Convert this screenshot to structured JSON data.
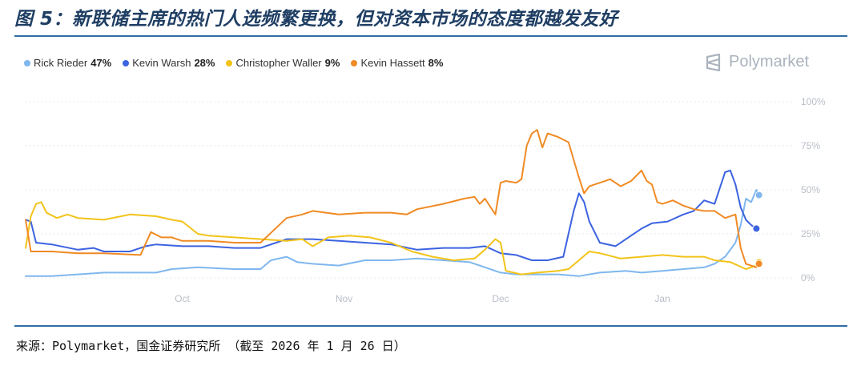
{
  "figure": {
    "title": "图 5：新联储主席的热门人选频繁更换，但对资本市场的态度都越发友好",
    "source": "来源：Polymarket，国金证券研究所 （截至 2026 年 1 月 26 日）",
    "brand": "Polymarket",
    "brand_icon": "polymarket-logo-icon"
  },
  "colors": {
    "rick_rieder": "#7fb7ee",
    "kevin_warsh": "#3c63e0",
    "christopher_waller": "#f2c318",
    "kevin_hassett": "#f08a24",
    "rule": "#2e6da4",
    "title": "#1f3e63"
  },
  "chart_data": {
    "type": "line",
    "x_unit": "day index starting Sep 1 (2025)",
    "xlim": [
      0,
      147
    ],
    "x_ticks": [
      {
        "label": "Oct",
        "x": 30
      },
      {
        "label": "Nov",
        "x": 61
      },
      {
        "label": "Dec",
        "x": 91
      },
      {
        "label": "Jan",
        "x": 122
      }
    ],
    "ylim": [
      0,
      100
    ],
    "y_ticks": [
      "0%",
      "25%",
      "50%",
      "75%",
      "100%"
    ],
    "y_tick_values": [
      0,
      25,
      50,
      75,
      100
    ],
    "grid": true,
    "legend_position": "top-left",
    "series": [
      {
        "name": "Rick Rieder",
        "pct_label": "47%",
        "color": "#7fb7ee",
        "points": [
          [
            0,
            1
          ],
          [
            5,
            1
          ],
          [
            10,
            2
          ],
          [
            15,
            3
          ],
          [
            25,
            3
          ],
          [
            28,
            5
          ],
          [
            33,
            6
          ],
          [
            40,
            5
          ],
          [
            45,
            5
          ],
          [
            47,
            10
          ],
          [
            50,
            12
          ],
          [
            52,
            9
          ],
          [
            55,
            8
          ],
          [
            60,
            7
          ],
          [
            65,
            10
          ],
          [
            70,
            10
          ],
          [
            75,
            11
          ],
          [
            80,
            10
          ],
          [
            85,
            9
          ],
          [
            88,
            6
          ],
          [
            91,
            3
          ],
          [
            94,
            2
          ],
          [
            98,
            2
          ],
          [
            102,
            2
          ],
          [
            106,
            1
          ],
          [
            110,
            3
          ],
          [
            115,
            4
          ],
          [
            118,
            3
          ],
          [
            122,
            4
          ],
          [
            126,
            5
          ],
          [
            130,
            6
          ],
          [
            132,
            8
          ],
          [
            134,
            12
          ],
          [
            136,
            20
          ],
          [
            137,
            30
          ],
          [
            138,
            45
          ],
          [
            139,
            43
          ],
          [
            140,
            50
          ],
          [
            140.5,
            47
          ]
        ]
      },
      {
        "name": "Kevin Warsh",
        "pct_label": "28%",
        "color": "#3c63e0",
        "points": [
          [
            0,
            33
          ],
          [
            1,
            32
          ],
          [
            2,
            20
          ],
          [
            5,
            19
          ],
          [
            10,
            16
          ],
          [
            13,
            17
          ],
          [
            15,
            15
          ],
          [
            20,
            15
          ],
          [
            23,
            18
          ],
          [
            25,
            19
          ],
          [
            30,
            18
          ],
          [
            35,
            18
          ],
          [
            40,
            17
          ],
          [
            45,
            17
          ],
          [
            48,
            20
          ],
          [
            50,
            22
          ],
          [
            55,
            22
          ],
          [
            60,
            21
          ],
          [
            65,
            20
          ],
          [
            70,
            19
          ],
          [
            75,
            16
          ],
          [
            80,
            17
          ],
          [
            85,
            17
          ],
          [
            88,
            18
          ],
          [
            91,
            14
          ],
          [
            94,
            13
          ],
          [
            97,
            10
          ],
          [
            100,
            10
          ],
          [
            103,
            12
          ],
          [
            105,
            38
          ],
          [
            106,
            48
          ],
          [
            107,
            43
          ],
          [
            108,
            32
          ],
          [
            110,
            20
          ],
          [
            113,
            18
          ],
          [
            116,
            24
          ],
          [
            118,
            28
          ],
          [
            120,
            31
          ],
          [
            123,
            32
          ],
          [
            126,
            36
          ],
          [
            128,
            38
          ],
          [
            130,
            44
          ],
          [
            132,
            42
          ],
          [
            134,
            60
          ],
          [
            135,
            61
          ],
          [
            136,
            53
          ],
          [
            137,
            40
          ],
          [
            138,
            33
          ],
          [
            139,
            30
          ],
          [
            140,
            28
          ]
        ]
      },
      {
        "name": "Christopher Waller",
        "pct_label": "9%",
        "color": "#f2c318",
        "points": [
          [
            0,
            17
          ],
          [
            1,
            35
          ],
          [
            2,
            42
          ],
          [
            3,
            43
          ],
          [
            4,
            37
          ],
          [
            6,
            34
          ],
          [
            8,
            36
          ],
          [
            10,
            34
          ],
          [
            15,
            33
          ],
          [
            20,
            36
          ],
          [
            25,
            35
          ],
          [
            28,
            33
          ],
          [
            30,
            32
          ],
          [
            33,
            25
          ],
          [
            35,
            24
          ],
          [
            40,
            23
          ],
          [
            45,
            22
          ],
          [
            50,
            21
          ],
          [
            53,
            22
          ],
          [
            55,
            18
          ],
          [
            58,
            23
          ],
          [
            62,
            24
          ],
          [
            66,
            23
          ],
          [
            70,
            20
          ],
          [
            74,
            15
          ],
          [
            78,
            12
          ],
          [
            82,
            10
          ],
          [
            86,
            11
          ],
          [
            88,
            16
          ],
          [
            90,
            22
          ],
          [
            91,
            20
          ],
          [
            92,
            4
          ],
          [
            95,
            2
          ],
          [
            98,
            3
          ],
          [
            102,
            4
          ],
          [
            104,
            5
          ],
          [
            106,
            10
          ],
          [
            108,
            15
          ],
          [
            110,
            14
          ],
          [
            114,
            11
          ],
          [
            118,
            12
          ],
          [
            122,
            13
          ],
          [
            126,
            12
          ],
          [
            130,
            12
          ],
          [
            132,
            10
          ],
          [
            135,
            9
          ],
          [
            138,
            5
          ],
          [
            140,
            7
          ],
          [
            140.5,
            9
          ]
        ]
      },
      {
        "name": "Kevin Hassett",
        "pct_label": "8%",
        "color": "#f08a24",
        "points": [
          [
            0,
            33
          ],
          [
            1,
            15
          ],
          [
            5,
            15
          ],
          [
            10,
            14
          ],
          [
            15,
            14
          ],
          [
            22,
            13
          ],
          [
            24,
            26
          ],
          [
            26,
            23
          ],
          [
            28,
            23
          ],
          [
            30,
            21
          ],
          [
            35,
            21
          ],
          [
            40,
            20
          ],
          [
            45,
            20
          ],
          [
            50,
            34
          ],
          [
            53,
            36
          ],
          [
            55,
            38
          ],
          [
            60,
            36
          ],
          [
            65,
            37
          ],
          [
            70,
            37
          ],
          [
            73,
            36
          ],
          [
            75,
            39
          ],
          [
            80,
            42
          ],
          [
            84,
            45
          ],
          [
            86,
            46
          ],
          [
            87,
            42
          ],
          [
            88,
            45
          ],
          [
            90,
            36
          ],
          [
            91,
            54
          ],
          [
            92,
            55
          ],
          [
            94,
            54
          ],
          [
            95,
            56
          ],
          [
            96,
            75
          ],
          [
            97,
            82
          ],
          [
            98,
            84
          ],
          [
            99,
            74
          ],
          [
            100,
            82
          ],
          [
            102,
            80
          ],
          [
            104,
            77
          ],
          [
            106,
            57
          ],
          [
            107,
            48
          ],
          [
            108,
            52
          ],
          [
            110,
            54
          ],
          [
            112,
            56
          ],
          [
            114,
            52
          ],
          [
            116,
            55
          ],
          [
            118,
            61
          ],
          [
            119,
            55
          ],
          [
            120,
            53
          ],
          [
            121,
            43
          ],
          [
            122,
            42
          ],
          [
            124,
            44
          ],
          [
            126,
            41
          ],
          [
            128,
            39
          ],
          [
            130,
            38
          ],
          [
            132,
            38
          ],
          [
            134,
            34
          ],
          [
            136,
            36
          ],
          [
            137,
            17
          ],
          [
            138,
            8
          ],
          [
            140,
            6
          ],
          [
            140.5,
            8
          ]
        ]
      }
    ]
  }
}
